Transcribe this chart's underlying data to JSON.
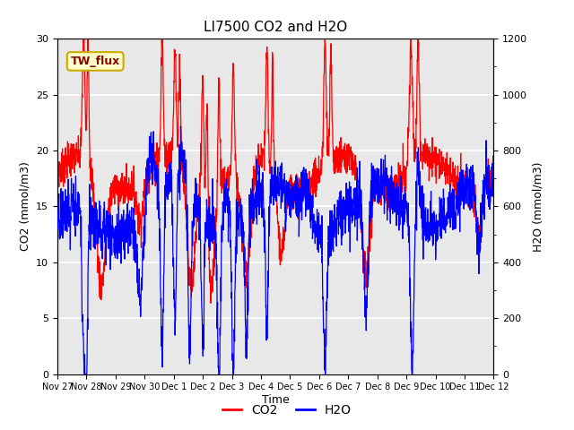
{
  "title": "LI7500 CO2 and H2O",
  "xlabel": "Time",
  "ylabel_left": "CO2 (mmol/m3)",
  "ylabel_right": "H2O (mmol/m3)",
  "annotation_text": "TW_flux",
  "annotation_bg": "#ffffcc",
  "annotation_border": "#ccaa00",
  "co2_color": "#ff0000",
  "h2o_color": "#0000ff",
  "co2_ylim": [
    0,
    30
  ],
  "h2o_ylim": [
    0,
    1200
  ],
  "plot_bg": "#e8e8e8",
  "xtick_labels": [
    "Nov 27",
    "Nov 28",
    "Nov 29",
    "Nov 30",
    "Dec 1",
    "Dec 2",
    "Dec 3",
    "Dec 4",
    "Dec 5",
    "Dec 6",
    "Dec 7",
    "Dec 8",
    "Dec 9",
    "Dec 10",
    "Dec 11",
    "Dec 12"
  ],
  "legend_co2": "CO2",
  "legend_h2o": "H2O",
  "grid_color": "#ffffff",
  "linewidth": 0.9
}
